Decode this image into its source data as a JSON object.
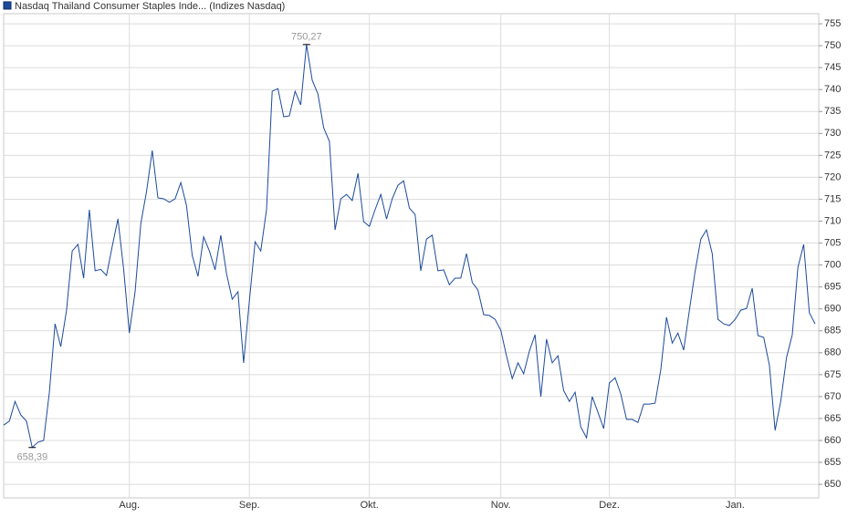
{
  "chart_data": {
    "type": "line",
    "categories": [
      null,
      null,
      null,
      null,
      null,
      null,
      null,
      null,
      null,
      null,
      null,
      null,
      null,
      null,
      null,
      null,
      null,
      null,
      null,
      null,
      null,
      null,
      "Aug.",
      null,
      null,
      null,
      null,
      null,
      null,
      null,
      null,
      null,
      null,
      null,
      null,
      null,
      null,
      null,
      null,
      null,
      null,
      null,
      null,
      "Sep.",
      null,
      null,
      null,
      null,
      null,
      null,
      null,
      null,
      null,
      null,
      null,
      null,
      null,
      null,
      null,
      null,
      null,
      null,
      null,
      null,
      "Okt.",
      null,
      null,
      null,
      null,
      null,
      null,
      null,
      null,
      null,
      null,
      null,
      null,
      null,
      null,
      null,
      null,
      null,
      null,
      null,
      null,
      null,
      null,
      "Nov.",
      null,
      null,
      null,
      null,
      null,
      null,
      null,
      null,
      null,
      null,
      null,
      null,
      null,
      null,
      null,
      null,
      null,
      null,
      "Dez.",
      null,
      null,
      null,
      null,
      null,
      null,
      null,
      null,
      null,
      null,
      null,
      null,
      null,
      null,
      null,
      null,
      null,
      null,
      null,
      null,
      null,
      "Jan.",
      null,
      null,
      null,
      null,
      null,
      null,
      null,
      null,
      null,
      null,
      null,
      null,
      null,
      null
    ],
    "series": [
      {
        "name": "Nasdaq Thailand Consumer Staples Inde... (Indizes Nasdaq)",
        "color": "#1c4a9c",
        "values": [
          663.5,
          664.4,
          668.9,
          665.8,
          664.4,
          658.39,
          659.6,
          660,
          671,
          686.6,
          681.4,
          689.7,
          703.2,
          704.7,
          697,
          712.6,
          698.7,
          699,
          697.6,
          704.3,
          710.5,
          699,
          684.5,
          693.9,
          709.5,
          716.7,
          726.1,
          715.3,
          715.1,
          714.3,
          715.1,
          718.8,
          713.6,
          702.2,
          697.4,
          706.4,
          703.2,
          698.9,
          706.8,
          698,
          692.2,
          693.9,
          677.7,
          691.8,
          705.3,
          703.2,
          712.6,
          739.6,
          740.2,
          733.8,
          734,
          739.6,
          736.5,
          750.27,
          742.1,
          739,
          731.3,
          728.2,
          708,
          715.1,
          716.1,
          714.7,
          720.9,
          709.9,
          708.8,
          712.6,
          716.1,
          710.5,
          715.1,
          718.2,
          719.2,
          713,
          711.5,
          698.7,
          705.9,
          706.8,
          698.7,
          698.9,
          695.5,
          697,
          697,
          702.6,
          696,
          694.3,
          688.7,
          688.5,
          687.6,
          685.1,
          679.3,
          674.1,
          677.7,
          675.2,
          680.4,
          684.1,
          670,
          683.1,
          677.7,
          679.3,
          671.4,
          668.9,
          671,
          663.1,
          660.6,
          670,
          666.4,
          662.7,
          673.1,
          674.3,
          670.6,
          664.8,
          664.8,
          664.1,
          668.3,
          668.3,
          668.5,
          676.2,
          688.1,
          682.2,
          684.5,
          680.6,
          689.7,
          698.5,
          705.9,
          708,
          702.6,
          687.6,
          686.6,
          686.2,
          687.6,
          689.7,
          690.1,
          694.7,
          683.9,
          683.5,
          677.2,
          662.3,
          669,
          678.9,
          684.1,
          699.5,
          704.7,
          689.1,
          686.6
        ],
        "value_labels": [
          null,
          null,
          null,
          null,
          null,
          "658,39",
          null,
          null,
          null,
          null,
          null,
          null,
          null,
          null,
          null,
          null,
          null,
          null,
          null,
          null,
          null,
          null,
          null,
          null,
          null,
          null,
          null,
          null,
          null,
          null,
          null,
          null,
          null,
          null,
          null,
          null,
          null,
          null,
          null,
          null,
          null,
          null,
          null,
          null,
          null,
          null,
          null,
          null,
          null,
          null,
          null,
          null,
          null,
          "750,27",
          null,
          null,
          null,
          null,
          null,
          null,
          null,
          null,
          null,
          null,
          null,
          null,
          null,
          null,
          null,
          null,
          null,
          null,
          null,
          null,
          null,
          null,
          null,
          null,
          null,
          null,
          null,
          null,
          null,
          null,
          null,
          null,
          null,
          null,
          null,
          null,
          null,
          null,
          null,
          null,
          null,
          null,
          null,
          null,
          null,
          null,
          null,
          null,
          null,
          null,
          null,
          null,
          null,
          null,
          null,
          null,
          null,
          null,
          null,
          null,
          null,
          null,
          null,
          null,
          null,
          null,
          null,
          null,
          null,
          null,
          null,
          null,
          null,
          null,
          null,
          null,
          null,
          null,
          null,
          null,
          null,
          null,
          null,
          null,
          null,
          null,
          null,
          null,
          null
        ]
      }
    ],
    "ylim": [
      646.9,
      757.3
    ],
    "yticks": [
      650,
      655,
      660,
      665,
      670,
      675,
      680,
      685,
      690,
      695,
      700,
      705,
      710,
      715,
      720,
      725,
      730,
      735,
      740,
      745,
      750,
      755
    ],
    "grid": true
  }
}
